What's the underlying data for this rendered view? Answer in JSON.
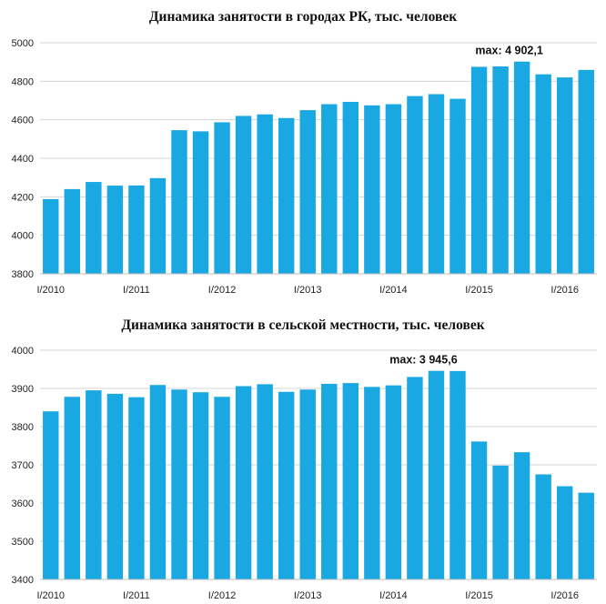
{
  "chart_data": [
    {
      "type": "bar",
      "title": "Динамика занятости в городах РК, тыс. человек",
      "ylim": [
        3800,
        5000
      ],
      "yticks": [
        "3800",
        "4000",
        "4200",
        "4400",
        "4600",
        "4800",
        "5000"
      ],
      "grid": true,
      "bar_color": "#1AA8E2",
      "x_tick_labels": [
        {
          "index": 0,
          "label": "I/2010"
        },
        {
          "index": 4,
          "label": "I/2011"
        },
        {
          "index": 8,
          "label": "I/2012"
        },
        {
          "index": 12,
          "label": "I/2013"
        },
        {
          "index": 16,
          "label": "I/2014"
        },
        {
          "index": 20,
          "label": "I/2015"
        },
        {
          "index": 24,
          "label": "I/2016"
        }
      ],
      "values": [
        4188,
        4240,
        4277,
        4258,
        4259,
        4297,
        4546,
        4540,
        4587,
        4620,
        4628,
        4609,
        4650,
        4681,
        4693,
        4675,
        4681,
        4723,
        4733,
        4709,
        4875,
        4877,
        4902.1,
        4836,
        4820,
        4859
      ],
      "annotation": {
        "text": "max: 4 902,1",
        "index": 22
      }
    },
    {
      "type": "bar",
      "title": "Динамика занятости в сельской местности, тыс. человек",
      "ylim": [
        3400,
        4000
      ],
      "yticks": [
        "3400",
        "3500",
        "3600",
        "3700",
        "3800",
        "3900",
        "4000"
      ],
      "grid": true,
      "bar_color": "#1AA8E2",
      "x_tick_labels": [
        {
          "index": 0,
          "label": "I/2010"
        },
        {
          "index": 4,
          "label": "I/2011"
        },
        {
          "index": 8,
          "label": "I/2012"
        },
        {
          "index": 12,
          "label": "I/2013"
        },
        {
          "index": 16,
          "label": "I/2014"
        },
        {
          "index": 20,
          "label": "I/2015"
        },
        {
          "index": 24,
          "label": "I/2016"
        }
      ],
      "values": [
        3840,
        3878,
        3895,
        3886,
        3877,
        3909,
        3897,
        3890,
        3878,
        3906,
        3911,
        3891,
        3897,
        3912,
        3914,
        3904,
        3908,
        3930,
        3946,
        3945.6,
        3761,
        3698,
        3733,
        3675,
        3644,
        3627
      ],
      "annotation": {
        "text": "max: 3 945,6",
        "index": 18
      }
    }
  ]
}
